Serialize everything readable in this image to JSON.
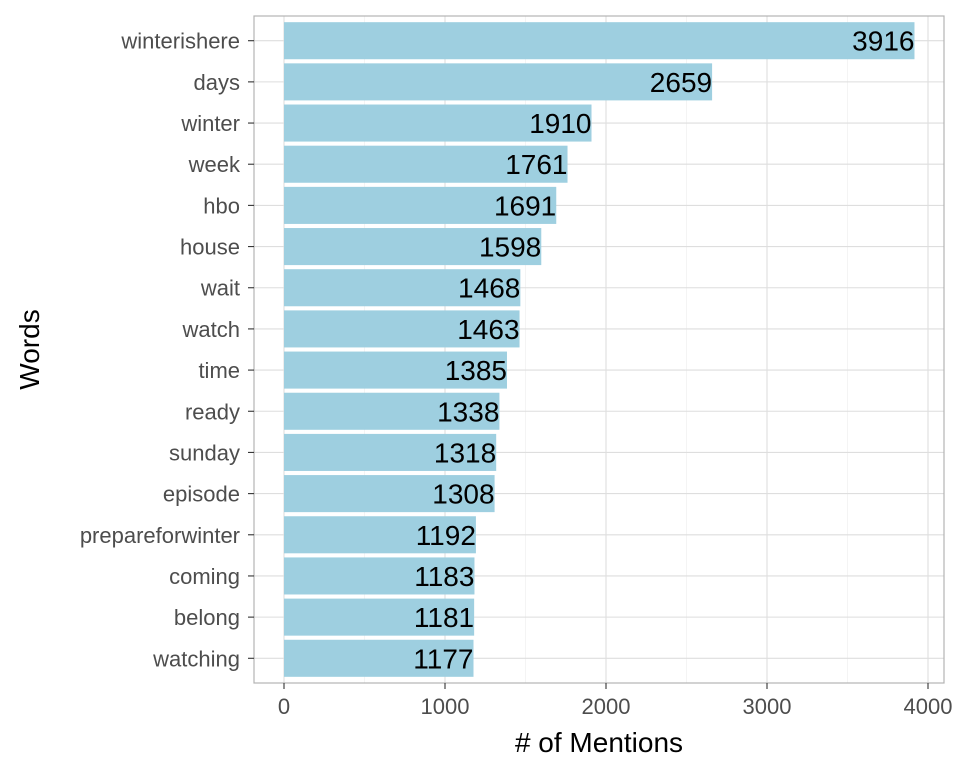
{
  "chart_data": {
    "type": "bar",
    "orientation": "horizontal",
    "categories": [
      "winterishere",
      "days",
      "winter",
      "week",
      "hbo",
      "house",
      "wait",
      "watch",
      "time",
      "ready",
      "sunday",
      "episode",
      "prepareforwinter",
      "coming",
      "belong",
      "watching"
    ],
    "values": [
      3916,
      2659,
      1910,
      1761,
      1691,
      1598,
      1468,
      1463,
      1385,
      1338,
      1318,
      1308,
      1192,
      1183,
      1181,
      1177
    ],
    "xlabel": "# of Mentions",
    "ylabel": "Words",
    "xlim": [
      0,
      4000
    ],
    "xticks": [
      0,
      1000,
      2000,
      3000,
      4000
    ],
    "xtick_labels": [
      "0",
      "1000",
      "2000",
      "3000",
      "4000"
    ],
    "grid": true,
    "data_labels": true,
    "colors": {
      "bar": "#9ecfe0",
      "grid": "#dedede",
      "border": "#b3b3b3"
    }
  }
}
